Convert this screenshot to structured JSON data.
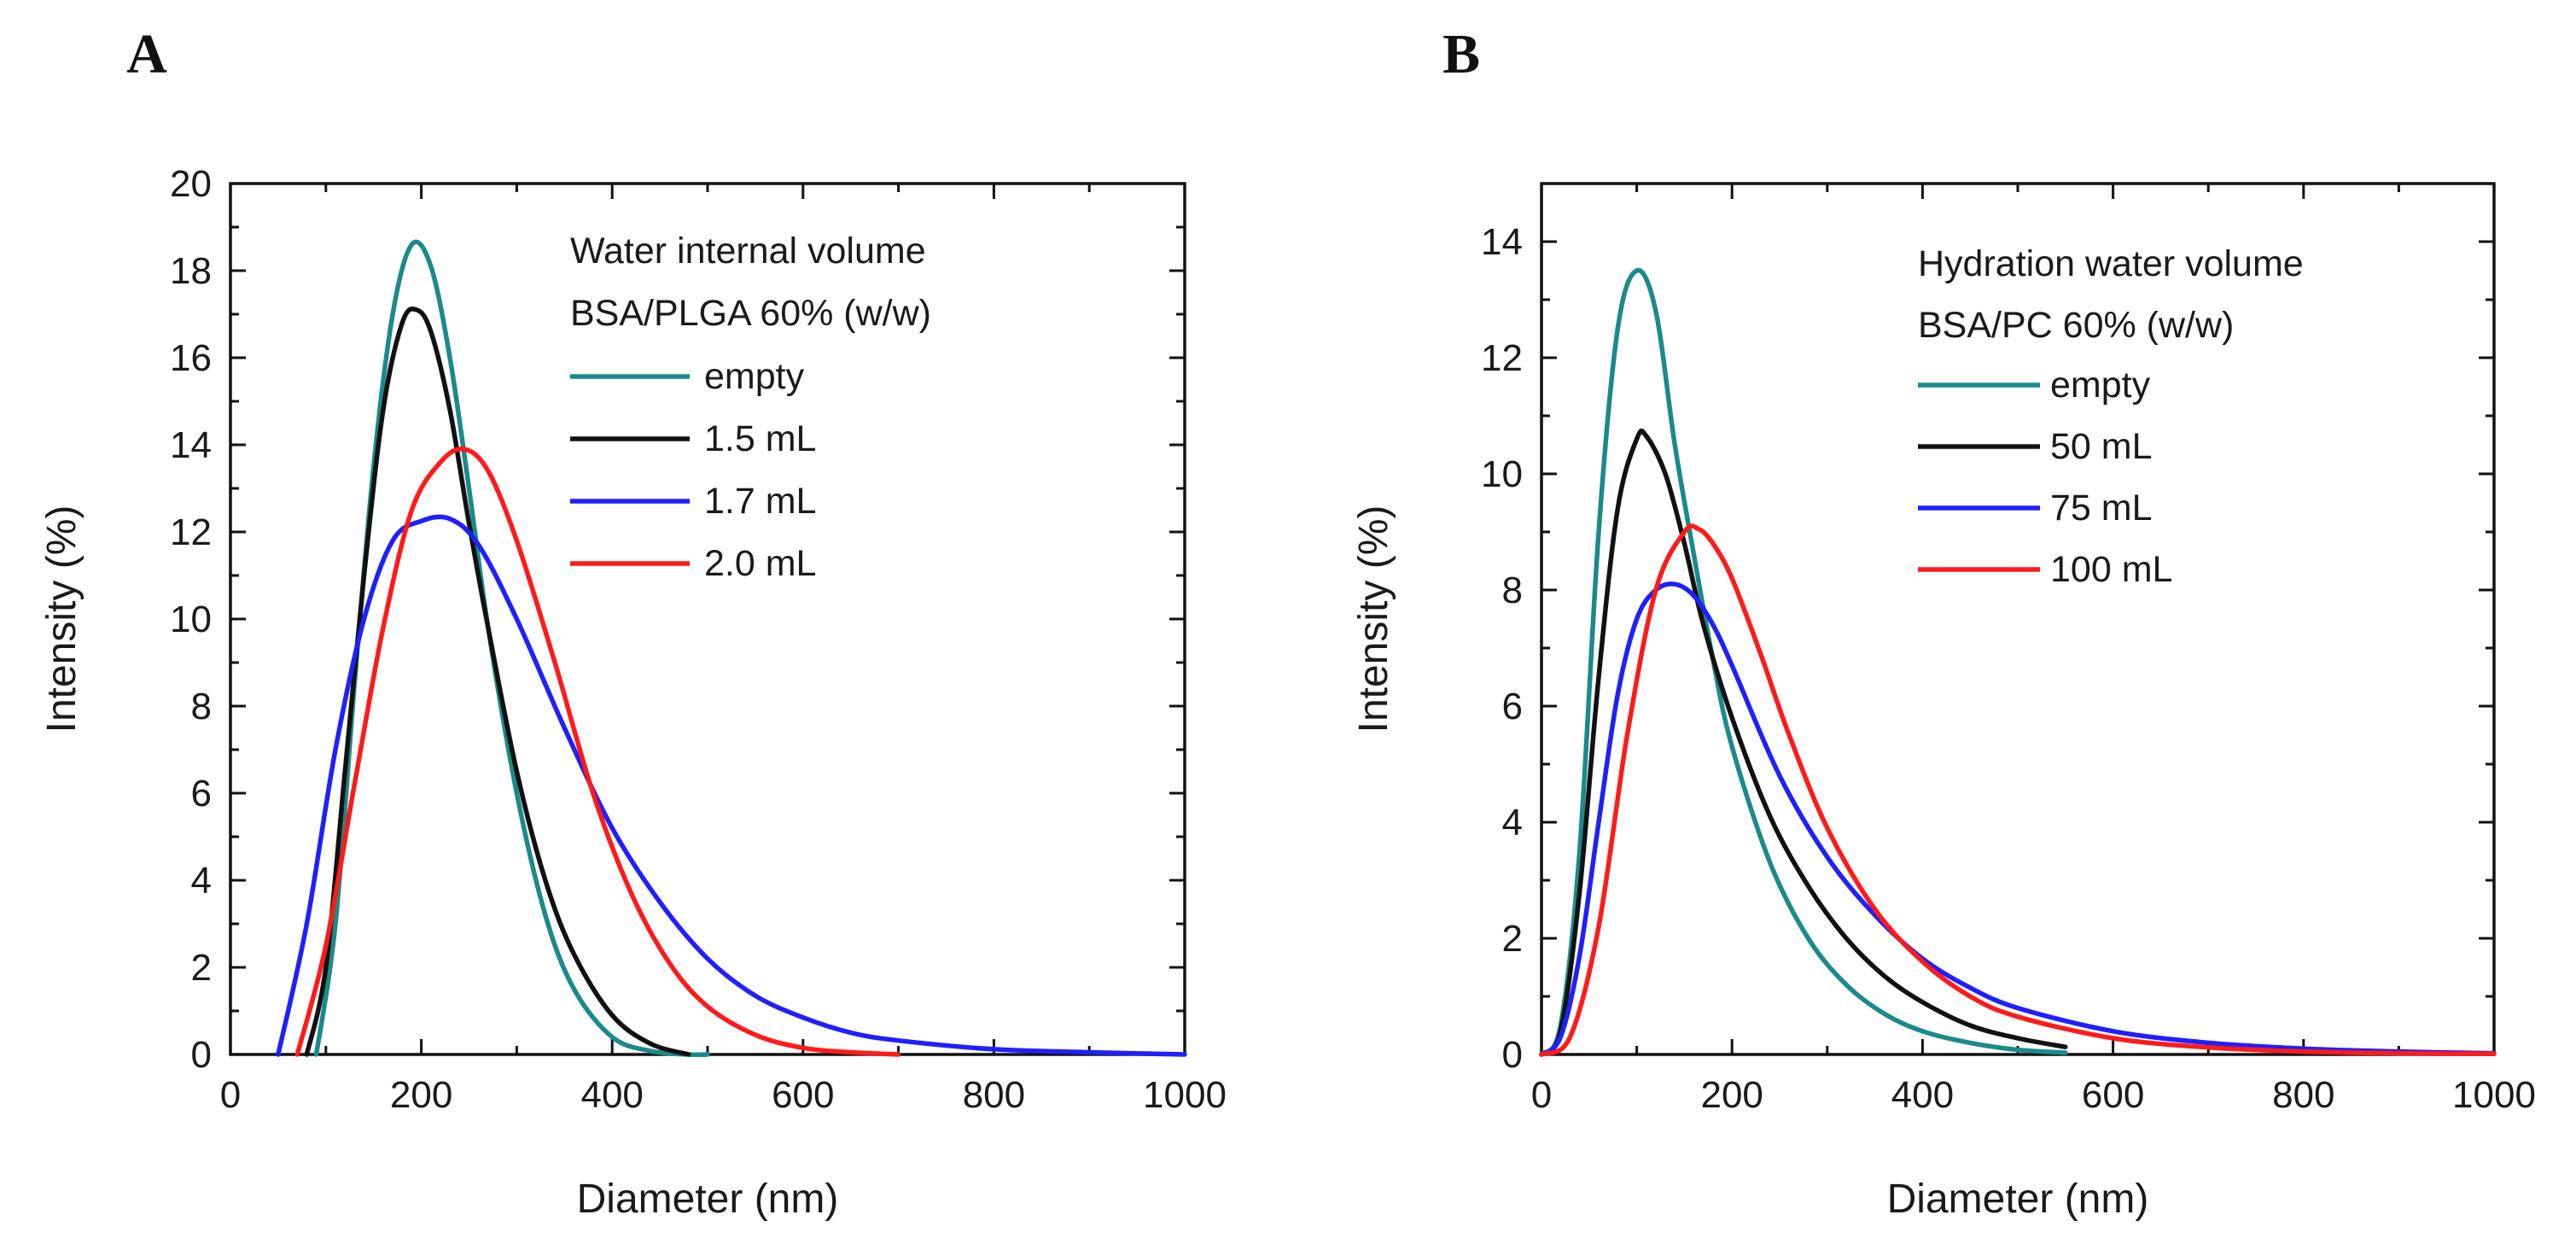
{
  "chart_data": [
    {
      "type": "line",
      "panel_label": "A",
      "title": "",
      "xlabel": "Diameter (nm)",
      "ylabel": "Intensity (%)",
      "xlim": [
        0,
        1000
      ],
      "ylim": [
        0,
        20
      ],
      "xticks": [
        0,
        200,
        400,
        600,
        800,
        1000
      ],
      "yticks": [
        0,
        2,
        4,
        6,
        8,
        10,
        12,
        14,
        16,
        18,
        20
      ],
      "grid": false,
      "legend_placement": "top-right",
      "legend_title": [
        "Water internal  volume",
        "BSA/PLGA 60% (w/w)"
      ],
      "series": [
        {
          "name": "empty",
          "color": "#1a8a8a",
          "x": [
            90,
            110,
            130,
            150,
            170,
            190,
            210,
            230,
            250,
            270,
            300,
            330,
            360,
            400,
            440,
            480,
            500
          ],
          "y": [
            0,
            3,
            8.5,
            13.5,
            17,
            18.6,
            18.1,
            16,
            13,
            9.8,
            6,
            3.2,
            1.5,
            0.4,
            0.08,
            0,
            0
          ]
        },
        {
          "name": "1.5 mL",
          "color": "#111111",
          "x": [
            80,
            100,
            120,
            140,
            160,
            180,
            195,
            210,
            230,
            250,
            270,
            300,
            330,
            360,
            400,
            440,
            480
          ],
          "y": [
            0,
            2,
            6.5,
            11,
            14.8,
            16.8,
            17.1,
            16.6,
            14.8,
            12.2,
            9.8,
            6.5,
            4,
            2.3,
            0.9,
            0.25,
            0
          ]
        },
        {
          "name": "1.7 mL",
          "color": "#1f1fff",
          "x": [
            50,
            80,
            110,
            140,
            170,
            200,
            230,
            260,
            300,
            350,
            400,
            450,
            500,
            550,
            600,
            650,
            700,
            800,
            900,
            1000
          ],
          "y": [
            0,
            3,
            7,
            10,
            11.8,
            12.25,
            12.3,
            11.7,
            10,
            7.5,
            5.2,
            3.5,
            2.2,
            1.35,
            0.85,
            0.5,
            0.32,
            0.12,
            0.05,
            0
          ]
        },
        {
          "name": "2.0 mL",
          "color": "#ff1a1a",
          "x": [
            70,
            100,
            130,
            160,
            190,
            220,
            245,
            270,
            300,
            340,
            380,
            420,
            460,
            500,
            550,
            600,
            650,
            700
          ],
          "y": [
            0,
            2.5,
            6.2,
            9.8,
            12.5,
            13.6,
            13.9,
            13.4,
            11.8,
            9,
            6,
            3.7,
            2.1,
            1.1,
            0.45,
            0.15,
            0.05,
            0
          ]
        }
      ]
    },
    {
      "type": "line",
      "panel_label": "B",
      "title": "",
      "xlabel": "Diameter (nm)",
      "ylabel": "Intensity (%)",
      "xlim": [
        0,
        1000
      ],
      "ylim": [
        0,
        15
      ],
      "xticks": [
        0,
        200,
        400,
        600,
        800,
        1000
      ],
      "yticks": [
        0,
        2,
        4,
        6,
        8,
        10,
        12,
        14
      ],
      "grid": false,
      "legend_placement": "top-right",
      "legend_title": [
        "Hydration water volume",
        "BSA/PC 60% (w/w)"
      ],
      "series": [
        {
          "name": "empty",
          "color": "#1a8a8a",
          "x": [
            0,
            20,
            40,
            60,
            80,
            100,
            120,
            140,
            160,
            180,
            200,
            240,
            280,
            320,
            360,
            400,
            450,
            500,
            550
          ],
          "y": [
            0,
            0.5,
            3.5,
            9,
            12.5,
            13.5,
            12.8,
            10.5,
            8.6,
            6.8,
            5.3,
            3.3,
            2,
            1.2,
            0.7,
            0.4,
            0.2,
            0.08,
            0.03
          ]
        },
        {
          "name": "50 mL",
          "color": "#111111",
          "x": [
            0,
            20,
            40,
            60,
            80,
            100,
            110,
            130,
            150,
            170,
            200,
            240,
            280,
            320,
            360,
            400,
            450,
            500,
            550
          ],
          "y": [
            0,
            0.4,
            2.8,
            6.5,
            9.4,
            10.6,
            10.65,
            10,
            8.8,
            7.4,
            5.8,
            4.1,
            2.9,
            2,
            1.35,
            0.9,
            0.5,
            0.28,
            0.13
          ]
        },
        {
          "name": "75 mL",
          "color": "#1f1fff",
          "x": [
            0,
            20,
            40,
            60,
            80,
            100,
            120,
            140,
            160,
            180,
            200,
            250,
            300,
            350,
            400,
            450,
            500,
            600,
            700,
            800,
            900,
            1000
          ],
          "y": [
            0,
            0.3,
            1.7,
            4,
            6.2,
            7.5,
            8,
            8.1,
            7.9,
            7.4,
            6.7,
            4.8,
            3.4,
            2.4,
            1.65,
            1.15,
            0.8,
            0.4,
            0.2,
            0.1,
            0.05,
            0.02
          ]
        },
        {
          "name": "100 mL",
          "color": "#ff1a1a",
          "x": [
            0,
            30,
            60,
            90,
            120,
            150,
            165,
            180,
            200,
            230,
            260,
            300,
            350,
            400,
            450,
            500,
            600,
            700,
            800,
            900,
            1000
          ],
          "y": [
            0,
            0.3,
            2.2,
            5.5,
            8,
            9,
            9.05,
            8.8,
            8.2,
            6.9,
            5.5,
            3.9,
            2.5,
            1.6,
            1,
            0.65,
            0.28,
            0.12,
            0.05,
            0.02,
            0.01
          ]
        }
      ]
    }
  ]
}
